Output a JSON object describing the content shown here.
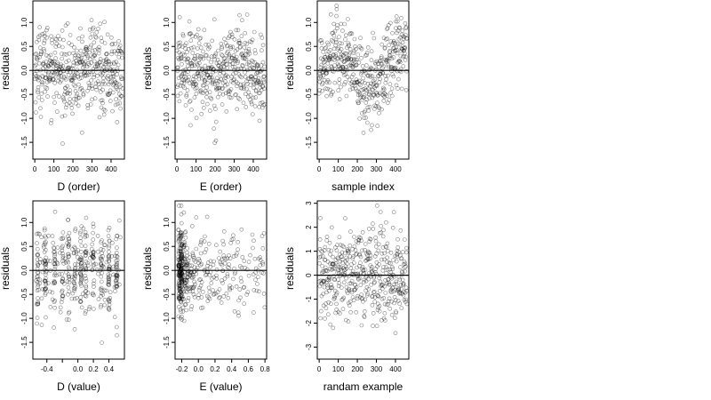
{
  "chart_data": [
    {
      "type": "scatter",
      "xlabel": "D (order)",
      "ylabel": "residuals",
      "xlim": [
        -10,
        470
      ],
      "ylim": [
        -1.85,
        1.45
      ],
      "xticks": [
        0,
        100,
        200,
        300,
        400
      ],
      "xtick_labels": [
        "0",
        "100",
        "200",
        "300",
        "400"
      ],
      "yticks": [
        -1.5,
        -1.0,
        -0.5,
        0.0,
        0.5,
        1.0
      ],
      "ytick_labels": [
        "-1.5",
        "-1.0",
        "-0.5",
        "0.0",
        "0.5",
        "1.0"
      ],
      "reference_line": 0,
      "n_points": 460,
      "x_range": [
        0,
        460
      ],
      "y_range": [
        -1.8,
        1.35
      ]
    },
    {
      "type": "scatter",
      "xlabel": "E (order)",
      "ylabel": "residuals",
      "xlim": [
        -10,
        470
      ],
      "ylim": [
        -1.85,
        1.45
      ],
      "xticks": [
        0,
        100,
        200,
        300,
        400
      ],
      "xtick_labels": [
        "0",
        "100",
        "200",
        "300",
        "400"
      ],
      "yticks": [
        -1.5,
        -1.0,
        -0.5,
        0.0,
        0.5,
        1.0
      ],
      "ytick_labels": [
        "-1.5",
        "-1.0",
        "-0.5",
        "0.0",
        "0.5",
        "1.0"
      ],
      "reference_line": 0,
      "n_points": 460,
      "x_range": [
        0,
        460
      ],
      "y_range": [
        -1.8,
        1.35
      ]
    },
    {
      "type": "scatter",
      "xlabel": "sample index",
      "ylabel": "residuals",
      "xlim": [
        -10,
        470
      ],
      "ylim": [
        -1.85,
        1.45
      ],
      "xticks": [
        0,
        100,
        200,
        300,
        400
      ],
      "xtick_labels": [
        "0",
        "100",
        "200",
        "300",
        "400"
      ],
      "yticks": [
        -1.5,
        -1.0,
        -0.5,
        0.0,
        0.5,
        1.0
      ],
      "ytick_labels": [
        "-1.5",
        "-1.0",
        "-0.5",
        "0.0",
        "0.5",
        "1.0"
      ],
      "reference_line": 0,
      "n_points": 460,
      "x_range": [
        0,
        460
      ],
      "y_range": [
        -1.8,
        1.35
      ]
    },
    {
      "type": "scatter",
      "xlabel": "D (value)",
      "ylabel": "residuals",
      "xlim": [
        -0.58,
        0.6
      ],
      "ylim": [
        -1.85,
        1.45
      ],
      "xticks": [
        -0.4,
        -0.2,
        0.0,
        0.2,
        0.4
      ],
      "xtick_labels": [
        "-0.4",
        "",
        "0.0",
        "0.2",
        "0.4"
      ],
      "yticks": [
        -1.5,
        -1.0,
        -0.5,
        0.0,
        0.5,
        1.0
      ],
      "ytick_labels": [
        "-1.5",
        "-1.0",
        "-0.5",
        "0.0",
        "0.5",
        "1.0"
      ],
      "reference_line": 0,
      "n_points": 460,
      "x_range": [
        -0.55,
        0.55
      ],
      "y_range": [
        -1.8,
        1.35
      ]
    },
    {
      "type": "scatter",
      "xlabel": "E (value)",
      "ylabel": "residuals",
      "xlim": [
        -0.28,
        0.82
      ],
      "ylim": [
        -1.85,
        1.45
      ],
      "xticks": [
        -0.2,
        0.0,
        0.2,
        0.4,
        0.6,
        0.8
      ],
      "xtick_labels": [
        "-0.2",
        "0.0",
        "0.2",
        "0.4",
        "0.6",
        "0.8"
      ],
      "yticks": [
        -1.5,
        -1.0,
        -0.5,
        0.0,
        0.5,
        1.0
      ],
      "ytick_labels": [
        "-1.5",
        "-1.0",
        "-0.5",
        "0.0",
        "0.5",
        "1.0"
      ],
      "reference_line": 0,
      "n_points": 460,
      "x_range": [
        -0.25,
        0.8
      ],
      "y_range": [
        -1.8,
        1.35
      ]
    },
    {
      "type": "scatter",
      "xlabel": "randam example",
      "ylabel": "residuals",
      "xlim": [
        -10,
        470
      ],
      "ylim": [
        -3.5,
        3.1
      ],
      "xticks": [
        0,
        100,
        200,
        300,
        400
      ],
      "xtick_labels": [
        "0",
        "100",
        "200",
        "300",
        "400"
      ],
      "yticks": [
        -3,
        -2,
        -1,
        0,
        1,
        2,
        3
      ],
      "ytick_labels": [
        "-3",
        "-2",
        "-1",
        "0",
        "1",
        "2",
        "3"
      ],
      "reference_line": 0,
      "n_points": 460,
      "x_range": [
        0,
        460
      ],
      "y_range": [
        -3.3,
        2.9
      ]
    }
  ]
}
